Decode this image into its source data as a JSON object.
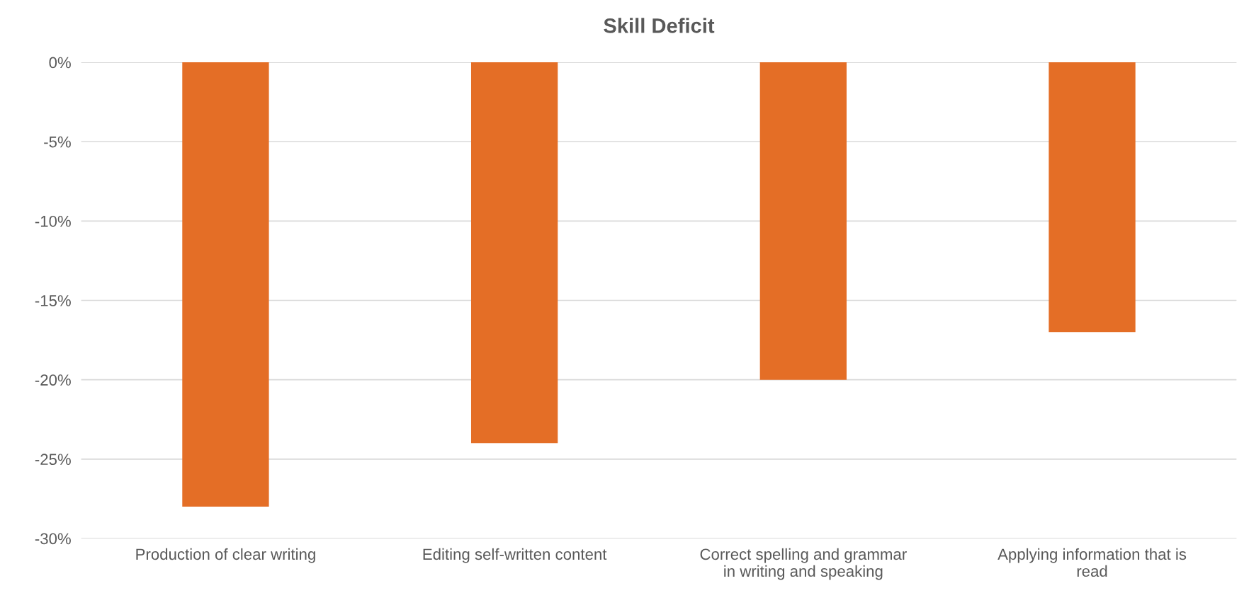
{
  "chart_data": {
    "type": "bar",
    "title": "Skill Deficit",
    "categories": [
      "Production of clear writing",
      "Editing self-written content",
      "Correct spelling and grammar in writing and speaking",
      "Applying information that is read"
    ],
    "values": [
      -28,
      -24,
      -20,
      -17
    ],
    "color": "#e46e26",
    "ylim": [
      -30,
      0
    ],
    "yticks": [
      {
        "value": 0,
        "label": "0%"
      },
      {
        "value": -5,
        "label": "-5%"
      },
      {
        "value": -10,
        "label": "-10%"
      },
      {
        "value": -15,
        "label": "-15%"
      },
      {
        "value": -20,
        "label": "-20%"
      },
      {
        "value": -25,
        "label": "-25%"
      },
      {
        "value": -30,
        "label": "-30%"
      }
    ],
    "grid": "y",
    "legend": false
  }
}
